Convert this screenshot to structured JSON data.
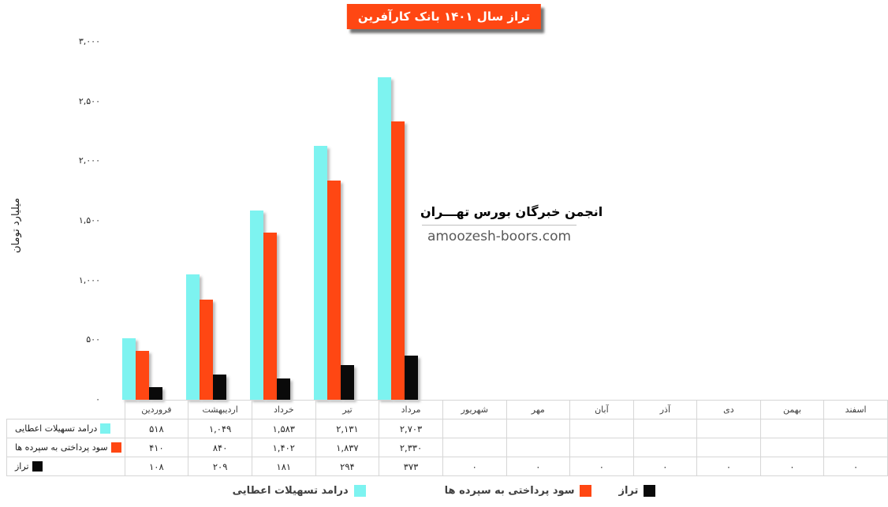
{
  "title": {
    "text": "تراز سال ۱۴۰۱ بانک کارآفرین",
    "bg_color": "#FF4713",
    "text_color": "#FFFFFF"
  },
  "watermark": {
    "line1": "انجمن خبرگان بورس تهـــران",
    "line2": "amoozesh-boors.com"
  },
  "colors": {
    "facilities_income": "#7DF3F0",
    "deposit_interest": "#FF4713",
    "balance": "#0A0A0A",
    "table_border": "#D6D6D6"
  },
  "chart_data": {
    "type": "bar",
    "title": "تراز سال ۱۴۰۱ بانک کارآفرین",
    "xlabel": "",
    "ylabel": "میلیارد تومان",
    "ylim": [
      0,
      3000
    ],
    "grid": false,
    "legend_position": "bottom",
    "categories": [
      "فروردین",
      "اردیبهشت",
      "خرداد",
      "تیر",
      "مرداد",
      "شهریور",
      "مهر",
      "آبان",
      "آذر",
      "دی",
      "بهمن",
      "اسفند"
    ],
    "yticks": [
      {
        "value": 0,
        "label": "۰"
      },
      {
        "value": 500,
        "label": "۵۰۰"
      },
      {
        "value": 1000,
        "label": "۱,۰۰۰"
      },
      {
        "value": 1500,
        "label": "۱,۵۰۰"
      },
      {
        "value": 2000,
        "label": "۲,۰۰۰"
      },
      {
        "value": 2500,
        "label": "۲,۵۰۰"
      },
      {
        "value": 3000,
        "label": "۳,۰۰۰"
      }
    ],
    "series": [
      {
        "name": "درامد تسهیلات اعطایی",
        "color": "#7DF3F0",
        "values": [
          518,
          1049,
          1583,
          2131,
          2703,
          null,
          null,
          null,
          null,
          null,
          null,
          null
        ],
        "display": [
          "۵۱۸",
          "۱,۰۴۹",
          "۱,۵۸۳",
          "۲,۱۳۱",
          "۲,۷۰۳",
          "",
          "",
          "",
          "",
          "",
          "",
          ""
        ]
      },
      {
        "name": "سود پرداختی به سپرده ها",
        "color": "#FF4713",
        "values": [
          410,
          840,
          1402,
          1837,
          2330,
          null,
          null,
          null,
          null,
          null,
          null,
          null
        ],
        "display": [
          "۴۱۰",
          "۸۴۰",
          "۱,۴۰۲",
          "۱,۸۳۷",
          "۲,۳۳۰",
          "",
          "",
          "",
          "",
          "",
          "",
          ""
        ]
      },
      {
        "name": "تراز",
        "color": "#0A0A0A",
        "values": [
          108,
          209,
          181,
          294,
          373,
          0,
          0,
          0,
          0,
          0,
          0,
          0
        ],
        "display": [
          "۱۰۸",
          "۲۰۹",
          "۱۸۱",
          "۲۹۴",
          "۳۷۳",
          "۰",
          "۰",
          "۰",
          "۰",
          "۰",
          "۰",
          "۰"
        ]
      }
    ]
  }
}
